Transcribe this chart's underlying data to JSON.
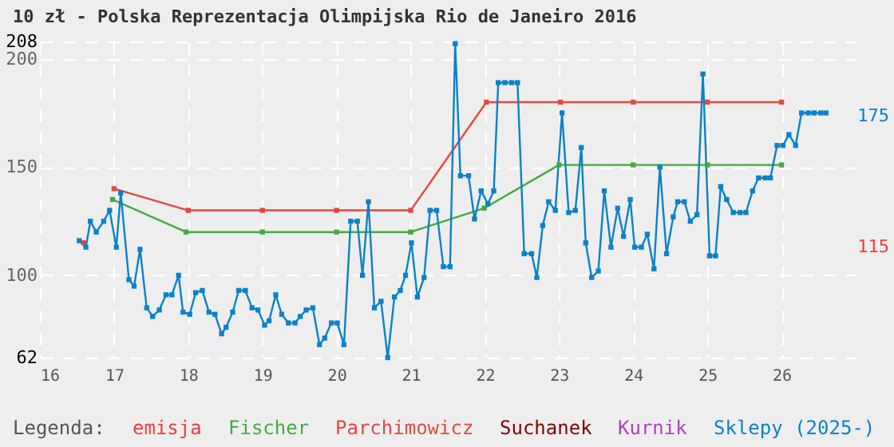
{
  "chart_data": {
    "type": "line",
    "title": "10 zł - Polska Reprezentacja Olimpijska Rio de Janeiro 2016",
    "legend_title": "Legenda:",
    "xlim": [
      16,
      27
    ],
    "xticks": [
      16,
      17,
      18,
      19,
      20,
      21,
      22,
      23,
      24,
      25,
      26
    ],
    "ylim": [
      62,
      208
    ],
    "yticks": [
      62,
      100,
      150,
      200,
      208
    ],
    "grid": true,
    "legend": "bottom",
    "marker": "square",
    "annotations": [
      "175",
      "115"
    ],
    "series": [
      {
        "name": "emisja",
        "type": "scatter",
        "color": "#f03c3c",
        "x": [
          16.59
        ],
        "values": [
          115
        ]
      },
      {
        "name": "Fischer",
        "color": "#44aa44",
        "x": [
          16.98,
          17.97,
          19,
          20,
          21,
          21.99,
          23,
          24,
          25,
          26
        ],
        "values": [
          135,
          120,
          120,
          120,
          120,
          131,
          151,
          151,
          151,
          151
        ]
      },
      {
        "name": "Parchimowicz",
        "color": "#e04a40",
        "x": [
          17,
          18,
          19,
          20,
          21,
          22.02,
          23.02,
          24,
          25,
          26
        ],
        "values": [
          140,
          130,
          130,
          130,
          130,
          180,
          180,
          180,
          180,
          180
        ]
      },
      {
        "name": "Suchanek",
        "color": "#800000"
      },
      {
        "name": "Kurnik",
        "color": "#aa44bb"
      },
      {
        "name": "Sklepy (2025-)",
        "color": "#0a82c8",
        "x": [
          16.53,
          16.62,
          16.68,
          16.76,
          16.86,
          16.94,
          17.03,
          17.09,
          17.2,
          17.27,
          17.35,
          17.44,
          17.52,
          17.61,
          17.7,
          17.78,
          17.87,
          17.93,
          18.02,
          18.1,
          18.19,
          18.28,
          18.36,
          18.45,
          18.51,
          18.6,
          18.68,
          18.77,
          18.86,
          18.94,
          19.03,
          19.09,
          19.18,
          19.26,
          19.35,
          19.44,
          19.51,
          19.59,
          19.68,
          19.77,
          19.84,
          19.93,
          20.01,
          20.1,
          20.19,
          20.28,
          20.35,
          20.43,
          20.51,
          20.6,
          20.69,
          20.78,
          20.86,
          20.93,
          21.01,
          21.09,
          21.18,
          21.26,
          21.35,
          21.44,
          21.53,
          21.6,
          21.67,
          21.78,
          21.86,
          21.95,
          22.04,
          22.12,
          22.18,
          22.27,
          22.36,
          22.44,
          22.53,
          22.63,
          22.7,
          22.78,
          22.86,
          22.95,
          23.04,
          23.13,
          23.22,
          23.3,
          23.36,
          23.44,
          23.53,
          23.61,
          23.7,
          23.79,
          23.87,
          23.96,
          24.02,
          24.11,
          24.19,
          24.28,
          24.36,
          24.45,
          24.54,
          24.6,
          24.69,
          24.77,
          24.86,
          24.94,
          25.03,
          25.11,
          25.18,
          25.26,
          25.35,
          25.44,
          25.52,
          25.61,
          25.69,
          25.78,
          25.85,
          25.94,
          26.02,
          26.1,
          26.19,
          26.27,
          26.36,
          26.44,
          26.53,
          26.6
        ],
        "values": [
          116,
          113,
          125,
          120,
          125,
          130,
          113,
          138,
          98,
          95,
          112,
          85,
          81,
          84,
          91,
          91,
          100,
          83,
          82,
          92,
          93,
          83,
          82,
          73,
          76,
          83,
          93,
          93,
          85,
          84,
          77,
          79,
          91,
          82,
          78,
          78,
          81,
          84,
          85,
          68,
          71,
          78,
          78,
          68,
          125,
          125,
          100,
          134,
          85,
          88,
          62,
          90,
          93,
          100,
          115,
          90,
          99,
          130,
          130,
          104,
          104,
          207,
          146,
          146,
          126,
          139,
          133,
          139,
          189,
          189,
          189,
          189,
          110,
          110,
          99,
          123,
          134,
          130,
          175,
          129,
          130,
          159,
          115,
          99,
          102,
          139,
          113,
          131,
          118,
          135,
          113,
          113,
          119,
          103,
          150,
          110,
          127,
          134,
          134,
          125,
          128,
          193,
          109,
          109,
          141,
          135,
          129,
          129,
          129,
          139,
          145,
          145,
          145,
          160,
          160,
          165,
          160,
          175,
          175,
          175,
          175,
          175
        ]
      }
    ]
  }
}
